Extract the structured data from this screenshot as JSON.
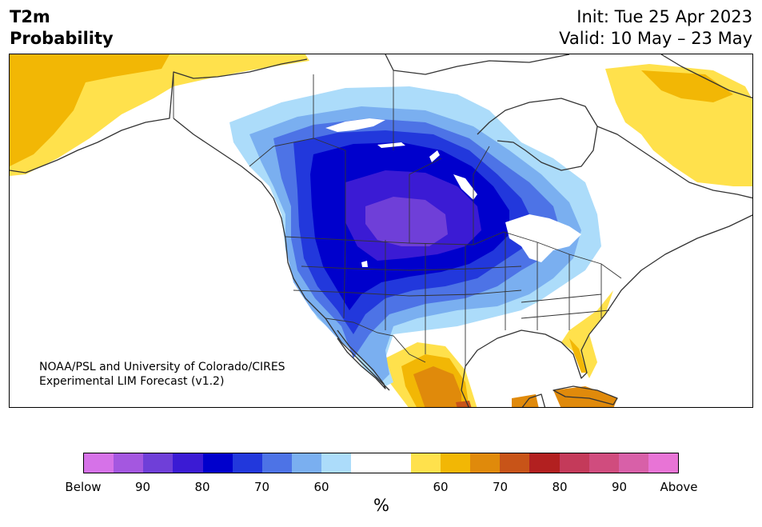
{
  "header": {
    "title_line1": "T2m",
    "title_line2": "Probability",
    "init": "Init: Tue 25 Apr 2023",
    "valid": "Valid: 10 May – 23 May"
  },
  "credit": {
    "line1": "NOAA/PSL and University of Colorado/CIRES",
    "line2": "Experimental LIM Forecast (v1.2)"
  },
  "colorbar": {
    "unit": "%",
    "colors": [
      "#d672e8",
      "#a457e0",
      "#6f3fd8",
      "#3b1bd4",
      "#0000cc",
      "#2238dc",
      "#4d73e6",
      "#7aaff0",
      "#acdcfa",
      "#ffffff",
      "#ffffff",
      "#ffe14c",
      "#f2b705",
      "#e08a0b",
      "#c85418",
      "#b22020",
      "#c43a5a",
      "#d04c7e",
      "#d860a8",
      "#e874d6"
    ],
    "tick_labels": [
      "Below",
      "90",
      "80",
      "70",
      "60",
      "60",
      "70",
      "80",
      "90",
      "Above"
    ]
  },
  "map": {
    "region": "North America",
    "colors": {
      "above_60": "#ffe14c",
      "above_70": "#f2b705",
      "above_80": "#e08a0b",
      "above_85": "#c85418",
      "below_60": "#acdcfa",
      "below_65": "#7aaff0",
      "below_70": "#4d73e6",
      "below_75": "#2238dc",
      "below_80": "#0000cc",
      "below_85": "#3b1bd4",
      "below_90": "#6f3fd8",
      "coast": "#333333"
    }
  }
}
